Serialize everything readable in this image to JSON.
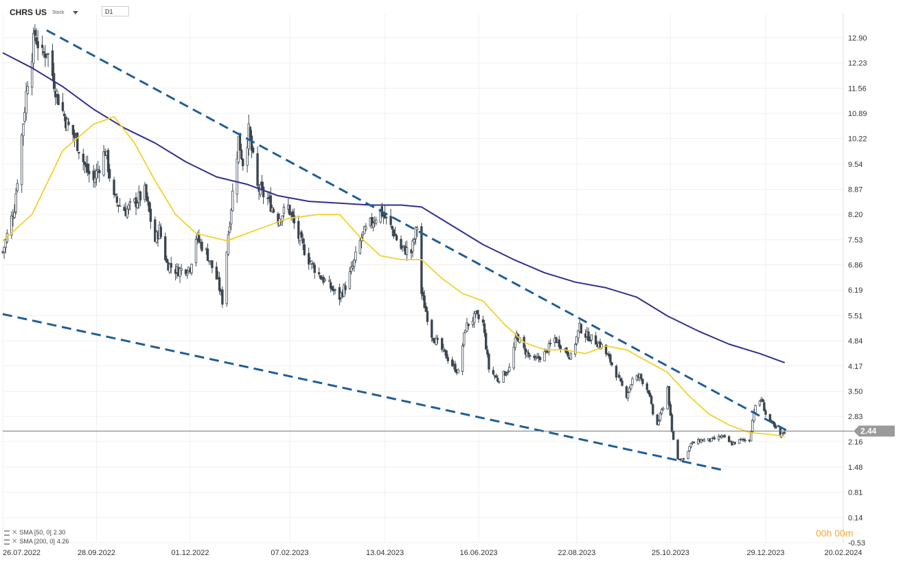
{
  "header": {
    "symbol": "CHRS US",
    "symbol_type": "Stock",
    "timeframe": "D1"
  },
  "indicators": [
    {
      "label": "SMA  [50,  0]",
      "value": "2.30",
      "color": "#f2d12b"
    },
    {
      "label": "SMA  [200,  0]",
      "value": "4.26",
      "color": "#2e2f8f"
    }
  ],
  "countdown": "00h 00m",
  "colors": {
    "candle": "#3c4650",
    "sma50": "#f2d12b",
    "sma200": "#2e2f8f",
    "trendline": "#1f5e95",
    "grid": "#efefef",
    "price_line": "#777777",
    "price_tag": "#9a9a9a"
  },
  "chart_data": {
    "type": "candlestick",
    "y_axis": {
      "ticks": [
        "12.90",
        "12.23",
        "11.56",
        "10.89",
        "10.22",
        "9.54",
        "8.87",
        "8.20",
        "7.53",
        "6.86",
        "6.19",
        "5.51",
        "4.84",
        "4.17",
        "3.50",
        "2.83",
        "2.16",
        "1.48",
        "0.81",
        "0.14",
        "-0.53"
      ],
      "range": [
        -0.53,
        13.2
      ]
    },
    "x_axis": {
      "ticks": [
        "26.07.2022",
        "28.09.2022",
        "01.12.2022",
        "07.02.2023",
        "13.04.2023",
        "16.06.2023",
        "22.08.2023",
        "25.10.2023",
        "29.12.2023",
        "20.02.2024"
      ],
      "start": "2022-07-26",
      "end": "2024-02-20"
    },
    "last_price": "2.44",
    "price_path": [
      [
        "2022-07-26",
        7.2
      ],
      [
        "2022-08-03",
        8.4
      ],
      [
        "2022-08-08",
        10.3
      ],
      [
        "2022-08-12",
        11.8
      ],
      [
        "2022-08-17",
        13.0
      ],
      [
        "2022-08-22",
        12.4
      ],
      [
        "2022-08-25",
        12.6
      ],
      [
        "2022-09-01",
        11.4
      ],
      [
        "2022-09-08",
        10.6
      ],
      [
        "2022-09-14",
        10.2
      ],
      [
        "2022-09-21",
        9.4
      ],
      [
        "2022-09-26",
        9.1
      ],
      [
        "2022-10-04",
        9.9
      ],
      [
        "2022-10-10",
        8.6
      ],
      [
        "2022-10-18",
        8.3
      ],
      [
        "2022-10-24",
        8.5
      ],
      [
        "2022-10-31",
        8.8
      ],
      [
        "2022-11-07",
        7.5
      ],
      [
        "2022-11-10",
        7.8
      ],
      [
        "2022-11-15",
        6.9
      ],
      [
        "2022-11-22",
        6.7
      ],
      [
        "2022-12-01",
        6.8
      ],
      [
        "2022-12-05",
        7.6
      ],
      [
        "2022-12-12",
        7.2
      ],
      [
        "2022-12-20",
        6.4
      ],
      [
        "2022-12-23",
        5.9
      ],
      [
        "2022-12-27",
        7.7
      ],
      [
        "2023-01-03",
        10.2
      ],
      [
        "2023-01-06",
        9.6
      ],
      [
        "2023-01-10",
        10.4
      ],
      [
        "2023-01-16",
        8.9
      ],
      [
        "2023-01-23",
        8.6
      ],
      [
        "2023-01-30",
        8.1
      ],
      [
        "2023-02-06",
        8.4
      ],
      [
        "2023-02-13",
        7.6
      ],
      [
        "2023-02-20",
        7.0
      ],
      [
        "2023-02-27",
        6.6
      ],
      [
        "2023-03-06",
        6.3
      ],
      [
        "2023-03-13",
        6.0
      ],
      [
        "2023-03-17",
        6.3
      ],
      [
        "2023-03-22",
        6.8
      ],
      [
        "2023-03-28",
        7.6
      ],
      [
        "2023-04-04",
        8.0
      ],
      [
        "2023-04-10",
        8.3
      ],
      [
        "2023-04-18",
        7.8
      ],
      [
        "2023-04-24",
        7.3
      ],
      [
        "2023-05-01",
        7.2
      ],
      [
        "2023-05-05",
        7.9
      ],
      [
        "2023-05-08",
        6.1
      ],
      [
        "2023-05-15",
        5.0
      ],
      [
        "2023-05-22",
        4.6
      ],
      [
        "2023-05-29",
        4.2
      ],
      [
        "2023-06-02",
        4.0
      ],
      [
        "2023-06-07",
        5.2
      ],
      [
        "2023-06-14",
        5.5
      ],
      [
        "2023-06-19",
        5.3
      ],
      [
        "2023-06-23",
        4.1
      ],
      [
        "2023-06-29",
        3.8
      ],
      [
        "2023-07-07",
        4.1
      ],
      [
        "2023-07-12",
        5.0
      ],
      [
        "2023-07-17",
        4.6
      ],
      [
        "2023-07-24",
        4.3
      ],
      [
        "2023-07-31",
        4.5
      ],
      [
        "2023-08-07",
        4.9
      ],
      [
        "2023-08-14",
        4.6
      ],
      [
        "2023-08-18",
        4.4
      ],
      [
        "2023-08-24",
        5.2
      ],
      [
        "2023-08-28",
        5.0
      ],
      [
        "2023-09-01",
        4.9
      ],
      [
        "2023-09-08",
        4.7
      ],
      [
        "2023-09-14",
        4.3
      ],
      [
        "2023-09-21",
        3.7
      ],
      [
        "2023-09-25",
        3.4
      ],
      [
        "2023-09-29",
        3.8
      ],
      [
        "2023-10-04",
        3.9
      ],
      [
        "2023-10-10",
        3.5
      ],
      [
        "2023-10-13",
        2.9
      ],
      [
        "2023-10-16",
        2.6
      ],
      [
        "2023-10-20",
        3.1
      ],
      [
        "2023-10-23",
        3.6
      ],
      [
        "2023-10-26",
        2.4
      ],
      [
        "2023-10-30",
        1.7
      ],
      [
        "2023-11-03",
        1.7
      ],
      [
        "2023-11-08",
        2.1
      ],
      [
        "2023-11-15",
        2.2
      ],
      [
        "2023-11-22",
        2.2
      ],
      [
        "2023-11-29",
        2.3
      ],
      [
        "2023-12-06",
        2.1
      ],
      [
        "2023-12-12",
        2.2
      ],
      [
        "2023-12-18",
        2.2
      ],
      [
        "2023-12-21",
        3.0
      ],
      [
        "2023-12-26",
        3.3
      ],
      [
        "2023-12-29",
        2.9
      ],
      [
        "2024-01-03",
        2.6
      ],
      [
        "2024-01-08",
        2.3
      ],
      [
        "2024-01-11",
        2.44
      ]
    ],
    "sma50": [
      [
        "2022-07-26",
        7.5
      ],
      [
        "2022-08-15",
        8.2
      ],
      [
        "2022-09-05",
        9.9
      ],
      [
        "2022-09-26",
        10.6
      ],
      [
        "2022-10-10",
        10.8
      ],
      [
        "2022-10-24",
        10.1
      ],
      [
        "2022-11-07",
        9.1
      ],
      [
        "2022-11-21",
        8.2
      ],
      [
        "2022-12-05",
        7.7
      ],
      [
        "2022-12-26",
        7.5
      ],
      [
        "2023-01-16",
        7.8
      ],
      [
        "2023-02-06",
        8.1
      ],
      [
        "2023-02-27",
        8.2
      ],
      [
        "2023-03-13",
        8.2
      ],
      [
        "2023-03-27",
        7.6
      ],
      [
        "2023-04-10",
        7.1
      ],
      [
        "2023-04-24",
        7.0
      ],
      [
        "2023-05-08",
        7.0
      ],
      [
        "2023-05-22",
        6.5
      ],
      [
        "2023-06-05",
        6.1
      ],
      [
        "2023-06-19",
        5.9
      ],
      [
        "2023-07-03",
        5.3
      ],
      [
        "2023-07-17",
        4.8
      ],
      [
        "2023-07-31",
        4.6
      ],
      [
        "2023-08-14",
        4.6
      ],
      [
        "2023-08-28",
        4.5
      ],
      [
        "2023-09-11",
        4.7
      ],
      [
        "2023-09-25",
        4.6
      ],
      [
        "2023-10-09",
        4.3
      ],
      [
        "2023-10-23",
        4.0
      ],
      [
        "2023-11-06",
        3.4
      ],
      [
        "2023-11-20",
        2.9
      ],
      [
        "2023-12-04",
        2.6
      ],
      [
        "2023-12-18",
        2.4
      ],
      [
        "2024-01-01",
        2.35
      ],
      [
        "2024-01-11",
        2.3
      ]
    ],
    "sma200": [
      [
        "2022-07-26",
        12.5
      ],
      [
        "2022-08-15",
        12.1
      ],
      [
        "2022-09-05",
        11.6
      ],
      [
        "2022-09-26",
        11.0
      ],
      [
        "2022-10-17",
        10.5
      ],
      [
        "2022-11-07",
        10.1
      ],
      [
        "2022-11-28",
        9.6
      ],
      [
        "2022-12-19",
        9.2
      ],
      [
        "2023-01-09",
        9.0
      ],
      [
        "2023-01-30",
        8.7
      ],
      [
        "2023-02-20",
        8.55
      ],
      [
        "2023-03-13",
        8.5
      ],
      [
        "2023-04-03",
        8.45
      ],
      [
        "2023-04-24",
        8.45
      ],
      [
        "2023-05-08",
        8.4
      ],
      [
        "2023-05-29",
        7.9
      ],
      [
        "2023-06-19",
        7.4
      ],
      [
        "2023-07-10",
        7.0
      ],
      [
        "2023-07-31",
        6.65
      ],
      [
        "2023-08-21",
        6.4
      ],
      [
        "2023-09-11",
        6.25
      ],
      [
        "2023-10-02",
        6.0
      ],
      [
        "2023-10-23",
        5.5
      ],
      [
        "2023-11-13",
        5.1
      ],
      [
        "2023-12-04",
        4.75
      ],
      [
        "2023-12-25",
        4.5
      ],
      [
        "2024-01-11",
        4.26
      ]
    ],
    "trendlines": [
      {
        "start": [
          "2022-08-25",
          13.1
        ],
        "end": [
          "2024-01-15",
          2.4
        ]
      },
      {
        "start": [
          "2022-07-26",
          5.55
        ],
        "end": [
          "2023-11-30",
          1.4
        ]
      }
    ]
  }
}
